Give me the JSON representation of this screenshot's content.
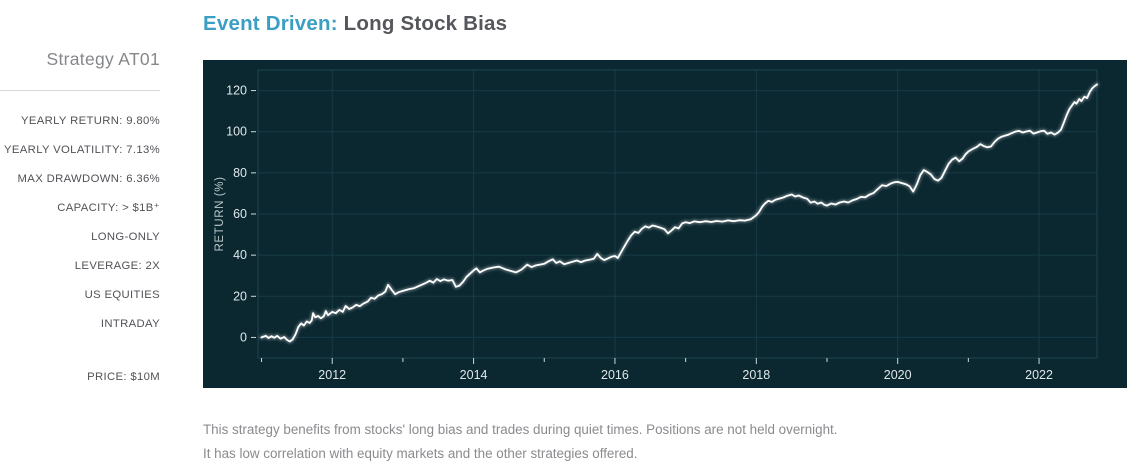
{
  "sidebar": {
    "title": "Strategy AT01",
    "stats": [
      "YEARLY RETURN: 9.80%",
      "YEARLY VOLATILITY: 7.13%",
      "MAX DRAWDOWN: 6.36%",
      "CAPACITY: > $1B⁺",
      "LONG-ONLY",
      "LEVERAGE: 2X",
      "US EQUITIES",
      "INTRADAY"
    ],
    "price": "PRICE: $10M"
  },
  "header": {
    "title_highlight": "Event Driven:",
    "title_rest": "Long Stock Bias",
    "highlight_color": "#3b9ec3",
    "title_color": "#55575c"
  },
  "chart_data": {
    "type": "line",
    "title": "",
    "xlabel": "",
    "ylabel": "RETURN (%)",
    "xlim": [
      2010.95,
      2022.82
    ],
    "ylim": [
      -10,
      130
    ],
    "x_ticks": [
      2012,
      2014,
      2016,
      2018,
      2020,
      2022
    ],
    "x_minor_ticks": [
      2011,
      2012,
      2013,
      2014,
      2015,
      2016,
      2017,
      2018,
      2019,
      2020,
      2021,
      2022
    ],
    "y_ticks": [
      0,
      20,
      40,
      60,
      80,
      100,
      120
    ],
    "grid": true,
    "legend": "none",
    "colors": {
      "background": "#0b2730",
      "grid": "#173c47",
      "frame": "#1d4551",
      "tick": "#cfd8da",
      "tick_text": "#dfe8ea",
      "axis_label": "#bac7ca",
      "line": "#ffffff"
    },
    "series": [
      {
        "name": "RETURN (%)",
        "points": [
          [
            2011.0,
            0
          ],
          [
            2011.06,
            0.8
          ],
          [
            2011.1,
            -0.3
          ],
          [
            2011.14,
            0.6
          ],
          [
            2011.18,
            -0.2
          ],
          [
            2011.22,
            0.8
          ],
          [
            2011.27,
            -0.6
          ],
          [
            2011.32,
            0.2
          ],
          [
            2011.36,
            -1.2
          ],
          [
            2011.4,
            -2
          ],
          [
            2011.44,
            -1
          ],
          [
            2011.48,
            1.5
          ],
          [
            2011.52,
            5
          ],
          [
            2011.56,
            6.8
          ],
          [
            2011.6,
            5.8
          ],
          [
            2011.64,
            7.8
          ],
          [
            2011.68,
            7
          ],
          [
            2011.71,
            8.3
          ],
          [
            2011.73,
            11.8
          ],
          [
            2011.76,
            9.8
          ],
          [
            2011.8,
            10.4
          ],
          [
            2011.84,
            9.3
          ],
          [
            2011.88,
            10.2
          ],
          [
            2011.91,
            12.8
          ],
          [
            2011.94,
            10.8
          ],
          [
            2012.0,
            12.4
          ],
          [
            2012.05,
            11.8
          ],
          [
            2012.1,
            13.4
          ],
          [
            2012.15,
            12.4
          ],
          [
            2012.19,
            15.3
          ],
          [
            2012.24,
            13.8
          ],
          [
            2012.29,
            14.6
          ],
          [
            2012.34,
            15.8
          ],
          [
            2012.39,
            15.2
          ],
          [
            2012.44,
            16.4
          ],
          [
            2012.5,
            17.4
          ],
          [
            2012.55,
            19.3
          ],
          [
            2012.6,
            18.8
          ],
          [
            2012.65,
            20.4
          ],
          [
            2012.7,
            21
          ],
          [
            2012.75,
            22.2
          ],
          [
            2012.79,
            25.6
          ],
          [
            2012.84,
            23.2
          ],
          [
            2012.89,
            21
          ],
          [
            2012.94,
            22
          ],
          [
            2013.0,
            22.6
          ],
          [
            2013.08,
            23.4
          ],
          [
            2013.16,
            24
          ],
          [
            2013.24,
            25.2
          ],
          [
            2013.32,
            26.4
          ],
          [
            2013.38,
            27.6
          ],
          [
            2013.43,
            26.6
          ],
          [
            2013.48,
            28.4
          ],
          [
            2013.53,
            27.4
          ],
          [
            2013.58,
            28.2
          ],
          [
            2013.64,
            27.6
          ],
          [
            2013.7,
            27.9
          ],
          [
            2013.75,
            24.6
          ],
          [
            2013.8,
            25.2
          ],
          [
            2013.85,
            27
          ],
          [
            2013.9,
            29.4
          ],
          [
            2013.95,
            31
          ],
          [
            2014.0,
            32.6
          ],
          [
            2014.04,
            33.6
          ],
          [
            2014.09,
            31.6
          ],
          [
            2014.14,
            32.6
          ],
          [
            2014.2,
            33.4
          ],
          [
            2014.28,
            34
          ],
          [
            2014.36,
            34.4
          ],
          [
            2014.44,
            33.2
          ],
          [
            2014.52,
            32.4
          ],
          [
            2014.6,
            31.6
          ],
          [
            2014.68,
            33
          ],
          [
            2014.76,
            35.4
          ],
          [
            2014.82,
            34.2
          ],
          [
            2014.88,
            35
          ],
          [
            2014.94,
            35.4
          ],
          [
            2015.0,
            35.8
          ],
          [
            2015.06,
            37
          ],
          [
            2015.12,
            38
          ],
          [
            2015.17,
            36.2
          ],
          [
            2015.22,
            37
          ],
          [
            2015.28,
            35.6
          ],
          [
            2015.34,
            36.2
          ],
          [
            2015.4,
            36.8
          ],
          [
            2015.46,
            37.4
          ],
          [
            2015.52,
            36.6
          ],
          [
            2015.58,
            37.4
          ],
          [
            2015.64,
            37.8
          ],
          [
            2015.7,
            38.2
          ],
          [
            2015.75,
            40.6
          ],
          [
            2015.8,
            38.6
          ],
          [
            2015.85,
            37.6
          ],
          [
            2015.9,
            38.4
          ],
          [
            2015.95,
            39.2
          ],
          [
            2016.0,
            39.6
          ],
          [
            2016.04,
            38.6
          ],
          [
            2016.08,
            41
          ],
          [
            2016.13,
            44
          ],
          [
            2016.18,
            47
          ],
          [
            2016.23,
            49.6
          ],
          [
            2016.28,
            51.4
          ],
          [
            2016.33,
            50.8
          ],
          [
            2016.38,
            52.8
          ],
          [
            2016.43,
            54
          ],
          [
            2016.48,
            53.4
          ],
          [
            2016.53,
            54.4
          ],
          [
            2016.58,
            54
          ],
          [
            2016.64,
            53.4
          ],
          [
            2016.7,
            52.6
          ],
          [
            2016.75,
            50.6
          ],
          [
            2016.8,
            52
          ],
          [
            2016.85,
            53.6
          ],
          [
            2016.9,
            53
          ],
          [
            2016.95,
            55.4
          ],
          [
            2017.0,
            56
          ],
          [
            2017.06,
            55.6
          ],
          [
            2017.12,
            56.4
          ],
          [
            2017.2,
            56
          ],
          [
            2017.28,
            56.5
          ],
          [
            2017.36,
            56.1
          ],
          [
            2017.44,
            56.6
          ],
          [
            2017.52,
            56.3
          ],
          [
            2017.6,
            56.9
          ],
          [
            2017.68,
            56.5
          ],
          [
            2017.76,
            57
          ],
          [
            2017.84,
            56.8
          ],
          [
            2017.92,
            57.4
          ],
          [
            2018.0,
            59.4
          ],
          [
            2018.04,
            61
          ],
          [
            2018.08,
            63.4
          ],
          [
            2018.12,
            65
          ],
          [
            2018.17,
            66.4
          ],
          [
            2018.22,
            65.9
          ],
          [
            2018.27,
            66.9
          ],
          [
            2018.32,
            67.4
          ],
          [
            2018.38,
            68
          ],
          [
            2018.44,
            68.9
          ],
          [
            2018.5,
            69.5
          ],
          [
            2018.55,
            68.5
          ],
          [
            2018.6,
            69
          ],
          [
            2018.66,
            68
          ],
          [
            2018.72,
            67.4
          ],
          [
            2018.77,
            65.5
          ],
          [
            2018.82,
            66.1
          ],
          [
            2018.87,
            65
          ],
          [
            2018.92,
            65.6
          ],
          [
            2018.96,
            64.5
          ],
          [
            2019.0,
            64.1
          ],
          [
            2019.06,
            65.1
          ],
          [
            2019.12,
            64.6
          ],
          [
            2019.18,
            65.6
          ],
          [
            2019.24,
            66.1
          ],
          [
            2019.3,
            65.6
          ],
          [
            2019.36,
            66.6
          ],
          [
            2019.42,
            67.3
          ],
          [
            2019.48,
            68.3
          ],
          [
            2019.54,
            68.1
          ],
          [
            2019.6,
            69.4
          ],
          [
            2019.66,
            70.2
          ],
          [
            2019.72,
            72.2
          ],
          [
            2019.78,
            74
          ],
          [
            2019.84,
            73.6
          ],
          [
            2019.9,
            74.8
          ],
          [
            2019.95,
            75.4
          ],
          [
            2020.0,
            75.6
          ],
          [
            2020.06,
            75
          ],
          [
            2020.12,
            74.4
          ],
          [
            2020.17,
            73.4
          ],
          [
            2020.22,
            70.9
          ],
          [
            2020.27,
            74.4
          ],
          [
            2020.32,
            78.9
          ],
          [
            2020.37,
            81.4
          ],
          [
            2020.42,
            80.4
          ],
          [
            2020.47,
            79.2
          ],
          [
            2020.52,
            77
          ],
          [
            2020.57,
            76.2
          ],
          [
            2020.62,
            77.6
          ],
          [
            2020.67,
            81
          ],
          [
            2020.72,
            84.4
          ],
          [
            2020.77,
            86.4
          ],
          [
            2020.82,
            87.4
          ],
          [
            2020.87,
            85.6
          ],
          [
            2020.92,
            87
          ],
          [
            2020.96,
            89
          ],
          [
            2021.0,
            90.4
          ],
          [
            2021.06,
            91.6
          ],
          [
            2021.12,
            92.6
          ],
          [
            2021.17,
            94
          ],
          [
            2021.22,
            93
          ],
          [
            2021.27,
            92.4
          ],
          [
            2021.32,
            92.8
          ],
          [
            2021.37,
            95
          ],
          [
            2021.42,
            96.6
          ],
          [
            2021.47,
            97.6
          ],
          [
            2021.52,
            98.1
          ],
          [
            2021.57,
            98.6
          ],
          [
            2021.62,
            99.4
          ],
          [
            2021.67,
            100.1
          ],
          [
            2021.72,
            100.4
          ],
          [
            2021.77,
            99.6
          ],
          [
            2021.82,
            100.1
          ],
          [
            2021.87,
            100.5
          ],
          [
            2021.92,
            99.1
          ],
          [
            2021.97,
            99.6
          ],
          [
            2022.02,
            100.2
          ],
          [
            2022.07,
            100.5
          ],
          [
            2022.12,
            99
          ],
          [
            2022.17,
            99.6
          ],
          [
            2022.22,
            98.6
          ],
          [
            2022.27,
            99.6
          ],
          [
            2022.31,
            101
          ],
          [
            2022.35,
            104.4
          ],
          [
            2022.39,
            108
          ],
          [
            2022.43,
            111
          ],
          [
            2022.47,
            113
          ],
          [
            2022.5,
            114.4
          ],
          [
            2022.53,
            113.6
          ],
          [
            2022.57,
            115.9
          ],
          [
            2022.6,
            114.9
          ],
          [
            2022.64,
            117
          ],
          [
            2022.68,
            116.4
          ],
          [
            2022.72,
            119.4
          ],
          [
            2022.75,
            121
          ],
          [
            2022.78,
            122
          ],
          [
            2022.82,
            123
          ]
        ]
      }
    ]
  },
  "description": {
    "line1": "This strategy benefits from stocks' long bias and trades during quiet times. Positions are not held overnight.",
    "line2": "It has low correlation with equity markets and the other strategies offered."
  }
}
